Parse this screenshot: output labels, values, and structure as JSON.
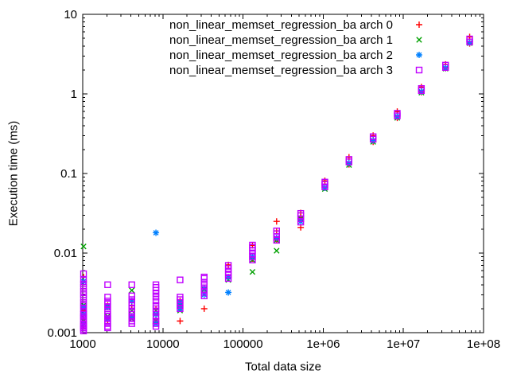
{
  "chart_data": {
    "type": "scatter",
    "title": "",
    "xlabel": "Total data size",
    "ylabel": "Execution time (ms)",
    "x_scale": "log",
    "y_scale": "log",
    "xlim": [
      1000,
      100000000
    ],
    "ylim": [
      0.001,
      10
    ],
    "grid": false,
    "legend_position": "top-inside",
    "x_ticks": {
      "values": [
        1000,
        10000,
        100000,
        1000000,
        10000000,
        100000000
      ],
      "labels": [
        "1000",
        "10000",
        "100000",
        "1e+06",
        "1e+07",
        "1e+08"
      ]
    },
    "y_ticks": {
      "values": [
        0.001,
        0.01,
        0.1,
        1,
        10
      ],
      "labels": [
        "0.001",
        "0.01",
        "0.1",
        "1",
        "10"
      ]
    },
    "series": [
      {
        "label": "non_linear_memset_regression_ba arch 0",
        "marker": "plus",
        "color": "#ff0000",
        "points": [
          [
            1024,
            0.005
          ],
          [
            1024,
            0.0019
          ],
          [
            1024,
            0.0015
          ],
          [
            1024,
            0.0012
          ],
          [
            2048,
            0.0022
          ],
          [
            2048,
            0.0014
          ],
          [
            4096,
            0.0022
          ],
          [
            4096,
            0.0016
          ],
          [
            8192,
            0.002
          ],
          [
            8192,
            0.0015
          ],
          [
            16384,
            0.0025
          ],
          [
            16384,
            0.0014
          ],
          [
            32768,
            0.002
          ],
          [
            65536,
            0.0071
          ],
          [
            65536,
            0.0049
          ],
          [
            131072,
            0.0125
          ],
          [
            131072,
            0.0085
          ],
          [
            262144,
            0.025
          ],
          [
            262144,
            0.019
          ],
          [
            262144,
            0.0145
          ],
          [
            524288,
            0.032
          ],
          [
            524288,
            0.028
          ],
          [
            524288,
            0.021
          ],
          [
            1048576,
            0.081
          ],
          [
            1048576,
            0.066
          ],
          [
            2097152,
            0.16
          ],
          [
            2097152,
            0.13
          ],
          [
            4194304,
            0.3
          ],
          [
            4194304,
            0.25
          ],
          [
            8388608,
            0.6
          ],
          [
            8388608,
            0.5
          ],
          [
            16777216,
            1.22
          ],
          [
            16777216,
            1.05
          ],
          [
            33554432,
            2.35
          ],
          [
            33554432,
            2.1
          ],
          [
            67108864,
            5.2
          ],
          [
            67108864,
            4.3
          ]
        ]
      },
      {
        "label": "non_linear_memset_regression_ba arch 1",
        "marker": "cross",
        "color": "#00a000",
        "points": [
          [
            1024,
            0.0121
          ],
          [
            1024,
            0.0022
          ],
          [
            1024,
            0.0017
          ],
          [
            1024,
            0.0014
          ],
          [
            2048,
            0.0021
          ],
          [
            2048,
            0.0016
          ],
          [
            4096,
            0.0034
          ],
          [
            4096,
            0.0019
          ],
          [
            4096,
            0.0015
          ],
          [
            8192,
            0.0019
          ],
          [
            8192,
            0.0014
          ],
          [
            16384,
            0.0022
          ],
          [
            16384,
            0.0019
          ],
          [
            32768,
            0.0035
          ],
          [
            65536,
            0.0046
          ],
          [
            131072,
            0.0082
          ],
          [
            131072,
            0.0058
          ],
          [
            262144,
            0.0145
          ],
          [
            262144,
            0.0107
          ],
          [
            524288,
            0.027
          ],
          [
            1048576,
            0.064
          ],
          [
            2097152,
            0.128
          ],
          [
            4194304,
            0.25
          ],
          [
            8388608,
            0.5
          ],
          [
            16777216,
            1.04
          ],
          [
            33554432,
            2.08
          ],
          [
            67108864,
            4.35
          ]
        ]
      },
      {
        "label": "non_linear_memset_regression_ba arch 2",
        "marker": "asterisk",
        "color": "#0080ff",
        "points": [
          [
            1024,
            0.0044
          ],
          [
            1024,
            0.0021
          ],
          [
            1024,
            0.0017
          ],
          [
            1024,
            0.0013
          ],
          [
            2048,
            0.0021
          ],
          [
            2048,
            0.0015
          ],
          [
            4096,
            0.0025
          ],
          [
            4096,
            0.0016
          ],
          [
            8192,
            0.018
          ],
          [
            8192,
            0.0017
          ],
          [
            8192,
            0.0013
          ],
          [
            16384,
            0.0024
          ],
          [
            16384,
            0.002
          ],
          [
            32768,
            0.0036
          ],
          [
            32768,
            0.003
          ],
          [
            65536,
            0.005
          ],
          [
            65536,
            0.0032
          ],
          [
            131072,
            0.009
          ],
          [
            262144,
            0.0155
          ],
          [
            524288,
            0.025
          ],
          [
            1048576,
            0.066
          ],
          [
            2097152,
            0.135
          ],
          [
            4194304,
            0.26
          ],
          [
            8388608,
            0.52
          ],
          [
            16777216,
            1.07
          ],
          [
            33554432,
            2.12
          ],
          [
            67108864,
            4.4
          ]
        ]
      },
      {
        "label": "non_linear_memset_regression_ba arch 3",
        "marker": "square",
        "color": "#c000ff",
        "points": [
          [
            1024,
            0.00105
          ],
          [
            1024,
            0.0011
          ],
          [
            1024,
            0.00115
          ],
          [
            1024,
            0.0012
          ],
          [
            1024,
            0.00125
          ],
          [
            1024,
            0.0013
          ],
          [
            1024,
            0.0014
          ],
          [
            1024,
            0.0015
          ],
          [
            1024,
            0.0016
          ],
          [
            1024,
            0.0017
          ],
          [
            1024,
            0.0018
          ],
          [
            1024,
            0.002
          ],
          [
            1024,
            0.0022
          ],
          [
            1024,
            0.0024
          ],
          [
            1024,
            0.0027
          ],
          [
            1024,
            0.003
          ],
          [
            1024,
            0.0033
          ],
          [
            1024,
            0.0037
          ],
          [
            1024,
            0.0041
          ],
          [
            1024,
            0.0046
          ],
          [
            1024,
            0.0055
          ],
          [
            2048,
            0.00115
          ],
          [
            2048,
            0.0012
          ],
          [
            2048,
            0.0013
          ],
          [
            2048,
            0.0014
          ],
          [
            2048,
            0.0015
          ],
          [
            2048,
            0.0016
          ],
          [
            2048,
            0.0017
          ],
          [
            2048,
            0.0019
          ],
          [
            2048,
            0.0021
          ],
          [
            2048,
            0.0023
          ],
          [
            2048,
            0.0025
          ],
          [
            2048,
            0.0028
          ],
          [
            2048,
            0.004
          ],
          [
            4096,
            0.0013
          ],
          [
            4096,
            0.0014
          ],
          [
            4096,
            0.0015
          ],
          [
            4096,
            0.0016
          ],
          [
            4096,
            0.0018
          ],
          [
            4096,
            0.002
          ],
          [
            4096,
            0.0022
          ],
          [
            4096,
            0.0024
          ],
          [
            4096,
            0.0026
          ],
          [
            4096,
            0.0029
          ],
          [
            4096,
            0.004
          ],
          [
            8192,
            0.0012
          ],
          [
            8192,
            0.0013
          ],
          [
            8192,
            0.0014
          ],
          [
            8192,
            0.0016
          ],
          [
            8192,
            0.0018
          ],
          [
            8192,
            0.002
          ],
          [
            8192,
            0.0022
          ],
          [
            8192,
            0.0025
          ],
          [
            8192,
            0.0028
          ],
          [
            8192,
            0.0031
          ],
          [
            8192,
            0.0034
          ],
          [
            8192,
            0.0037
          ],
          [
            8192,
            0.004
          ],
          [
            16384,
            0.002
          ],
          [
            16384,
            0.0022
          ],
          [
            16384,
            0.0024
          ],
          [
            16384,
            0.0026
          ],
          [
            16384,
            0.0028
          ],
          [
            16384,
            0.0046
          ],
          [
            32768,
            0.0029
          ],
          [
            32768,
            0.0032
          ],
          [
            32768,
            0.0035
          ],
          [
            32768,
            0.0039
          ],
          [
            32768,
            0.0043
          ],
          [
            32768,
            0.0048
          ],
          [
            32768,
            0.005
          ],
          [
            65536,
            0.0048
          ],
          [
            65536,
            0.0053
          ],
          [
            65536,
            0.0058
          ],
          [
            65536,
            0.0064
          ],
          [
            65536,
            0.007
          ],
          [
            131072,
            0.0082
          ],
          [
            131072,
            0.009
          ],
          [
            131072,
            0.0098
          ],
          [
            131072,
            0.0108
          ],
          [
            131072,
            0.0118
          ],
          [
            131072,
            0.0126
          ],
          [
            262144,
            0.0145
          ],
          [
            262144,
            0.016
          ],
          [
            262144,
            0.0175
          ],
          [
            262144,
            0.019
          ],
          [
            524288,
            0.0245
          ],
          [
            524288,
            0.027
          ],
          [
            524288,
            0.0295
          ],
          [
            524288,
            0.0315
          ],
          [
            1048576,
            0.068
          ],
          [
            1048576,
            0.073
          ],
          [
            1048576,
            0.078
          ],
          [
            2097152,
            0.14
          ],
          [
            2097152,
            0.15
          ],
          [
            4194304,
            0.27
          ],
          [
            4194304,
            0.29
          ],
          [
            8388608,
            0.53
          ],
          [
            8388608,
            0.57
          ],
          [
            16777216,
            1.1
          ],
          [
            16777216,
            1.17
          ],
          [
            33554432,
            2.15
          ],
          [
            33554432,
            2.3
          ],
          [
            67108864,
            4.5
          ],
          [
            67108864,
            4.9
          ]
        ]
      }
    ]
  }
}
